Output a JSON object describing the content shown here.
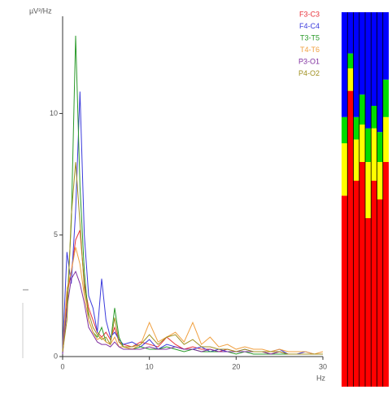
{
  "chart_data": [
    {
      "type": "line",
      "y_label": "µV²/Hz",
      "x_label": "Hz",
      "x": [
        0,
        0.5,
        1,
        1.5,
        2,
        2.5,
        3,
        3.5,
        4,
        4.5,
        5,
        5.5,
        6,
        6.5,
        7,
        8,
        9,
        10,
        11,
        12,
        13,
        14,
        15,
        16,
        17,
        18,
        19,
        20,
        21,
        22,
        23,
        24,
        25,
        26,
        27,
        28,
        29,
        30
      ],
      "xlim": [
        0,
        30
      ],
      "xticks": [
        0,
        10,
        20,
        30
      ],
      "ylim": [
        0,
        14
      ],
      "yticks": [
        0,
        5,
        10
      ],
      "series": [
        {
          "name": "F3-C3",
          "color": "#e8323a",
          "values": [
            0.2,
            2.5,
            3.5,
            4.8,
            5.2,
            3.0,
            2.0,
            1.5,
            1.0,
            0.8,
            1.0,
            0.7,
            1.2,
            0.6,
            0.5,
            0.4,
            0.6,
            0.5,
            0.4,
            0.8,
            0.5,
            0.3,
            0.4,
            0.3,
            0.3,
            0.2,
            0.3,
            0.2,
            0.2,
            0.2,
            0.2,
            0.1,
            0.2,
            0.1,
            0.1,
            0.1,
            0.1,
            0.1
          ]
        },
        {
          "name": "F4-C4",
          "color": "#3b3bdc",
          "values": [
            0.3,
            4.3,
            3.0,
            6.0,
            10.9,
            5.0,
            2.5,
            2.0,
            1.0,
            3.2,
            1.5,
            0.8,
            1.0,
            0.7,
            0.5,
            0.6,
            0.4,
            0.7,
            0.3,
            0.5,
            0.4,
            0.3,
            0.3,
            0.4,
            0.2,
            0.3,
            0.2,
            0.2,
            0.3,
            0.2,
            0.2,
            0.2,
            0.3,
            0.1,
            0.1,
            0.2,
            0.1,
            0.1
          ]
        },
        {
          "name": "T3-T5",
          "color": "#2a9a2a",
          "values": [
            0.2,
            2.0,
            5.5,
            13.2,
            7.0,
            3.5,
            1.5,
            1.0,
            0.8,
            1.2,
            0.6,
            0.5,
            2.0,
            0.8,
            0.4,
            0.3,
            0.4,
            0.3,
            0.3,
            0.4,
            0.3,
            0.2,
            0.3,
            0.2,
            0.2,
            0.2,
            0.2,
            0.1,
            0.2,
            0.1,
            0.1,
            0.1,
            0.1,
            0.1,
            0.1,
            0.1,
            0.1,
            0.1
          ]
        },
        {
          "name": "T4-T6",
          "color": "#f0a040",
          "values": [
            0.2,
            2.8,
            3.5,
            4.5,
            3.8,
            2.5,
            1.5,
            1.0,
            0.7,
            0.8,
            0.6,
            0.5,
            0.8,
            0.4,
            0.4,
            0.3,
            0.5,
            1.4,
            0.6,
            0.8,
            1.0,
            0.6,
            1.4,
            0.5,
            0.8,
            0.4,
            0.5,
            0.3,
            0.4,
            0.3,
            0.3,
            0.2,
            0.3,
            0.2,
            0.2,
            0.2,
            0.1,
            0.2
          ]
        },
        {
          "name": "P3-O1",
          "color": "#8030a0",
          "values": [
            0.1,
            2.0,
            3.2,
            3.5,
            3.0,
            2.2,
            1.2,
            0.9,
            0.6,
            0.5,
            0.5,
            0.4,
            0.6,
            0.4,
            0.3,
            0.3,
            0.3,
            0.4,
            0.3,
            0.3,
            0.4,
            0.3,
            0.3,
            0.2,
            0.3,
            0.2,
            0.2,
            0.2,
            0.2,
            0.2,
            0.2,
            0.1,
            0.2,
            0.1,
            0.1,
            0.1,
            0.1,
            0.1
          ]
        },
        {
          "name": "P4-O2",
          "color": "#a09020",
          "values": [
            0.2,
            1.5,
            5.8,
            8.0,
            5.5,
            2.8,
            1.8,
            1.2,
            0.9,
            0.7,
            0.8,
            0.5,
            1.6,
            0.6,
            0.4,
            0.4,
            0.5,
            0.9,
            0.5,
            0.8,
            0.9,
            0.5,
            0.7,
            0.4,
            0.4,
            0.3,
            0.3,
            0.2,
            0.3,
            0.2,
            0.2,
            0.2,
            0.2,
            0.1,
            0.1,
            0.1,
            0.1,
            0.1
          ]
        }
      ]
    },
    {
      "type": "stacked_bar",
      "categories": [
        null,
        null,
        null,
        null,
        null,
        null,
        null,
        null
      ],
      "ylim": [
        0,
        100
      ],
      "series": [
        {
          "color": "#ff0000",
          "values": [
            51,
            79,
            55,
            60,
            45,
            55,
            50,
            60
          ]
        },
        {
          "color": "#ffff00",
          "values": [
            14,
            6,
            11,
            10,
            15,
            14,
            10,
            12
          ]
        },
        {
          "color": "#00dd00",
          "values": [
            7,
            4,
            6,
            8,
            9,
            6,
            8,
            10
          ]
        },
        {
          "color": "#0000ff",
          "values": [
            28,
            11,
            28,
            22,
            31,
            25,
            32,
            18
          ]
        }
      ]
    }
  ]
}
